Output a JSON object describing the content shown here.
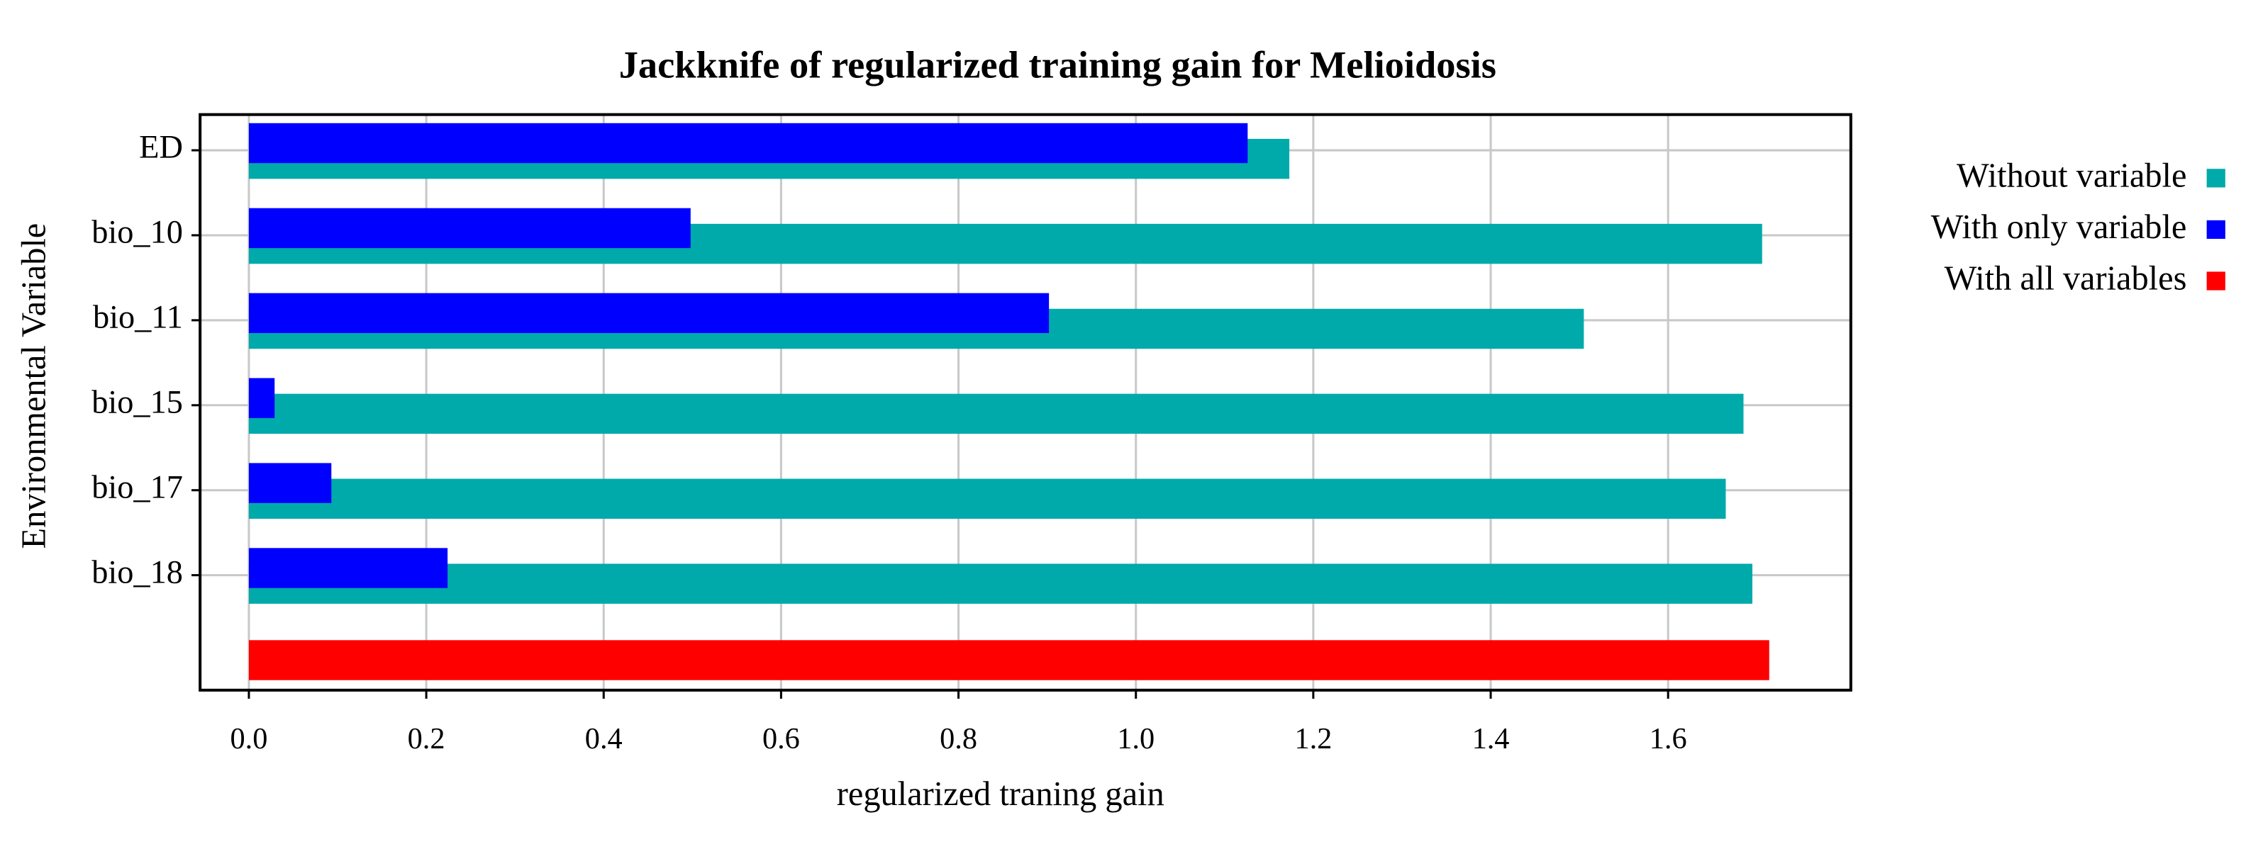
{
  "chart_data": {
    "type": "bar",
    "orientation": "horizontal",
    "title": "Jackknife of regularized training gain for Melioidosis",
    "x_label": "regularized traning gain",
    "y_label": "Environmental Variable",
    "categories": [
      "ED",
      "bio_10",
      "bio_11",
      "bio_15",
      "bio_17",
      "bio_18",
      null
    ],
    "series": [
      {
        "name": "Without variable",
        "color": "#00aaaa",
        "values": [
          1.173,
          1.706,
          1.505,
          1.685,
          1.665,
          1.695,
          null
        ]
      },
      {
        "name": "With only variable",
        "color": "#0000ff",
        "values": [
          1.126,
          0.498,
          0.902,
          0.029,
          0.093,
          0.224,
          null
        ]
      },
      {
        "name": "With all variables",
        "color": "#ff0000",
        "values": [
          null,
          null,
          null,
          null,
          null,
          null,
          1.714
        ]
      }
    ],
    "xlim": [
      -0.055,
      1.806
    ],
    "xticks": [
      {
        "value": 0,
        "label": "0.0"
      },
      0.2,
      0.4,
      0.6,
      0.8,
      {
        "value": 1,
        "label": "1.0"
      },
      1.2,
      1.4,
      1.6
    ],
    "grid": true,
    "legend": "right"
  }
}
